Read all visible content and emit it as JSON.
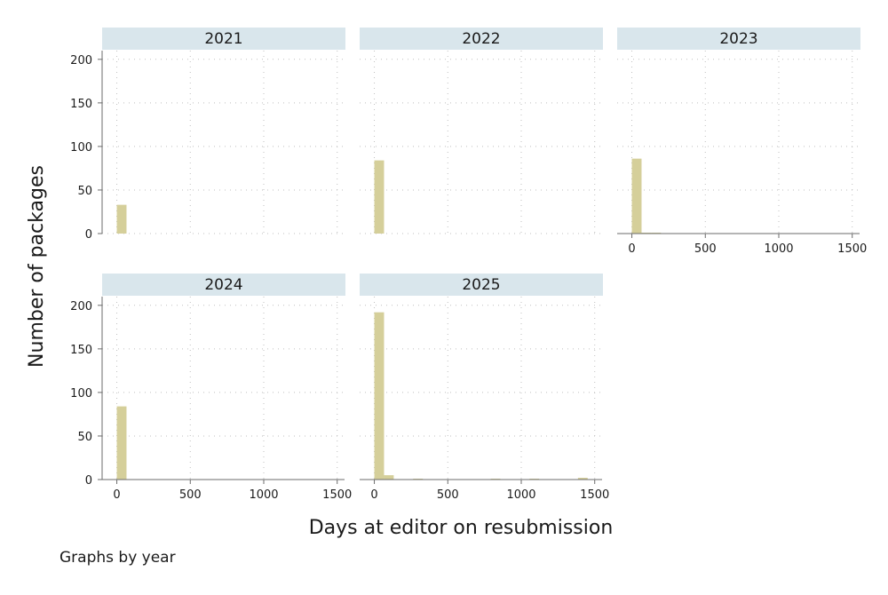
{
  "chart_data": {
    "type": "bar",
    "chart_kind": "histogram",
    "xlabel": "Days at editor on resubmission",
    "ylabel": "Number of packages",
    "note": "Graphs by year",
    "xlim": [
      -100,
      1550
    ],
    "ylim": [
      0,
      210
    ],
    "x_ticks": [
      "0",
      "500",
      "1000",
      "1500"
    ],
    "y_ticks": [
      "0",
      "50",
      "100",
      "150",
      "200"
    ],
    "bin_width": 66,
    "grid": true,
    "colors": {
      "bar": "#d5cf9a",
      "strip": "#d9e6ec",
      "grid": "#bfbfbf",
      "axis": "#6b6b6b"
    },
    "panels": [
      {
        "label": "2021",
        "bins": [
          {
            "x": 0,
            "count": 33
          }
        ]
      },
      {
        "label": "2022",
        "bins": [
          {
            "x": 0,
            "count": 84
          }
        ]
      },
      {
        "label": "2023",
        "bins": [
          {
            "x": 0,
            "count": 86
          },
          {
            "x": 66,
            "count": 1
          },
          {
            "x": 132,
            "count": 1
          }
        ]
      },
      {
        "label": "2024",
        "bins": [
          {
            "x": 0,
            "count": 84
          }
        ]
      },
      {
        "label": "2025",
        "bins": [
          {
            "x": 0,
            "count": 192
          },
          {
            "x": 66,
            "count": 5
          },
          {
            "x": 264,
            "count": 1
          },
          {
            "x": 792,
            "count": 1
          },
          {
            "x": 1056,
            "count": 1
          },
          {
            "x": 1386,
            "count": 2
          }
        ]
      }
    ]
  }
}
